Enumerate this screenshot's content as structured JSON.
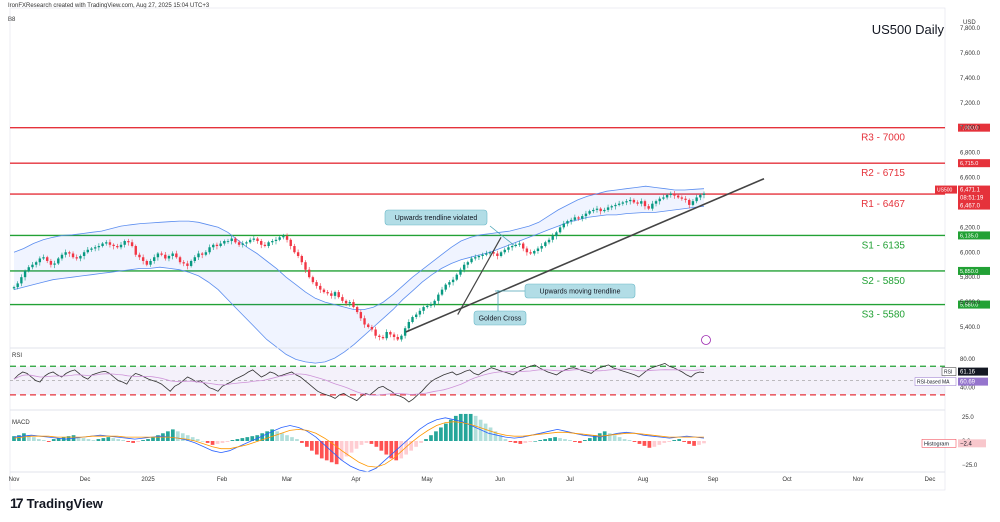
{
  "header": {
    "credit": "IronFXResearch created with TradingView.com, Aug 27, 2025 15:04 UTC+3",
    "symbol_tag": "B8",
    "currency": "USD",
    "brand": "TradingView"
  },
  "chart_data": {
    "type": "candlestick",
    "title": "US500 Daily",
    "currency": "USD",
    "x_tick_labels": [
      "Nov",
      "Dec",
      "2025",
      "Feb",
      "Mar",
      "Apr",
      "May",
      "Jun",
      "Jul",
      "Aug",
      "Sep",
      "Oct",
      "Nov",
      "Dec"
    ],
    "y_tick_labels": [
      5400,
      5600,
      5800,
      6000,
      6200,
      6400,
      6600,
      6800,
      7000,
      7200,
      7400,
      7600,
      7800
    ],
    "ylim": [
      5400,
      7800
    ],
    "close": [
      5720,
      5750,
      5800,
      5850,
      5880,
      5900,
      5920,
      5950,
      5960,
      5930,
      5900,
      5910,
      5950,
      5980,
      6000,
      5990,
      5960,
      5950,
      5970,
      6000,
      6020,
      6030,
      6040,
      6050,
      6070,
      6080,
      6060,
      6050,
      6040,
      6060,
      6090,
      6080,
      6050,
      5980,
      5960,
      5930,
      5900,
      5930,
      5960,
      5990,
      5980,
      5950,
      5970,
      5990,
      5960,
      5920,
      5910,
      5890,
      5930,
      5960,
      5990,
      5980,
      6000,
      6040,
      6060,
      6050,
      6070,
      6090,
      6090,
      6110,
      6080,
      6060,
      6070,
      6080,
      6100,
      6110,
      6090,
      6060,
      6050,
      6080,
      6090,
      6100,
      6120,
      6130,
      6100,
      6050,
      6000,
      5970,
      5920,
      5860,
      5800,
      5760,
      5730,
      5700,
      5680,
      5670,
      5650,
      5680,
      5640,
      5610,
      5590,
      5600,
      5560,
      5520,
      5470,
      5420,
      5400,
      5380,
      5330,
      5320,
      5310,
      5360,
      5340,
      5320,
      5300,
      5330,
      5390,
      5440,
      5480,
      5500,
      5530,
      5560,
      5570,
      5580,
      5610,
      5660,
      5700,
      5740,
      5760,
      5780,
      5820,
      5860,
      5900,
      5920,
      5950,
      5960,
      5970,
      5980,
      5990,
      6000,
      5990,
      5970,
      6000,
      6020,
      6040,
      6050,
      6060,
      6070,
      6030,
      6000,
      5990,
      6010,
      6030,
      6050,
      6080,
      6100,
      6130,
      6160,
      6200,
      6230,
      6250,
      6260,
      6280,
      6270,
      6290,
      6310,
      6330,
      6340,
      6350,
      6330,
      6340,
      6360,
      6370,
      6380,
      6390,
      6400,
      6410,
      6420,
      6400,
      6390,
      6410,
      6370,
      6350,
      6390,
      6410,
      6430,
      6440,
      6460,
      6470,
      6455,
      6440,
      6430,
      6420,
      6380,
      6410,
      6440,
      6460,
      6471
    ],
    "bollinger": {
      "upper": [
        6000,
        6030,
        6070,
        6100,
        6120,
        6135,
        6140,
        6150,
        6160,
        6170,
        6190,
        6210,
        6220,
        6230,
        6235,
        6240,
        6245,
        6250,
        6250,
        6240,
        6220,
        6200,
        6160,
        6100,
        6040,
        5990,
        5930,
        5870,
        5800,
        5740,
        5680,
        5630,
        5600,
        5580,
        5560,
        5540,
        5540,
        5560,
        5600,
        5660,
        5730,
        5800,
        5860,
        5920,
        5980,
        6040,
        6090,
        6120,
        6140,
        6150,
        6160,
        6170,
        6190,
        6210,
        6240,
        6290,
        6340,
        6380,
        6420,
        6450,
        6470,
        6490,
        6500,
        6510,
        6520,
        6530,
        6520,
        6510,
        6500,
        6500,
        6505,
        6510
      ],
      "lower": [
        5700,
        5720,
        5740,
        5760,
        5780,
        5790,
        5800,
        5810,
        5820,
        5830,
        5840,
        5850,
        5860,
        5870,
        5870,
        5880,
        5870,
        5860,
        5840,
        5810,
        5760,
        5700,
        5620,
        5540,
        5460,
        5380,
        5300,
        5240,
        5180,
        5140,
        5120,
        5110,
        5120,
        5150,
        5200,
        5260,
        5330,
        5400,
        5470,
        5540,
        5620,
        5690,
        5760,
        5820,
        5870,
        5910,
        5940,
        5960,
        5980,
        6000,
        6030,
        6060,
        6090,
        6120,
        6150,
        6180,
        6210,
        6240,
        6260,
        6280,
        6290,
        6300,
        6300,
        6310,
        6315,
        6320,
        6320,
        6330,
        6340,
        6350,
        6360,
        6370
      ]
    },
    "levels": [
      {
        "label": "R3 - 7000",
        "value": 7000,
        "tag": "7,000.0",
        "kind": "resistance"
      },
      {
        "label": "R2 - 6715",
        "value": 6715,
        "tag": "6,715.0",
        "kind": "resistance"
      },
      {
        "label": "R1 - 6467",
        "value": 6467,
        "tag": "6,467.0",
        "kind": "resistance"
      },
      {
        "label": "S1 - 6135",
        "value": 6135,
        "tag": "6,135.0",
        "kind": "support"
      },
      {
        "label": "S2 - 5850",
        "value": 5850,
        "tag": "5,850.0",
        "kind": "support"
      },
      {
        "label": "S3 - 5580",
        "value": 5580,
        "tag": "5,580.0",
        "kind": "support"
      }
    ],
    "price_tags": {
      "symbol": "US500",
      "last_price": "6,471.1",
      "countdown": "08:51:19",
      "level": "6,467.0"
    },
    "annotations": [
      {
        "text": "Upwards trendline violated"
      },
      {
        "text": "Upwards moving trendline"
      },
      {
        "text": "Golden Cross"
      }
    ],
    "rsi": {
      "name": "RSI",
      "value": "61.16",
      "based_ma_label": "RSI-based MA",
      "based_ma_value": "60.69",
      "upper_band": 70,
      "lower_band": 30,
      "tick_labels": [
        80,
        60,
        40
      ],
      "values": [
        52,
        58,
        62,
        60,
        55,
        50,
        48,
        56,
        60,
        62,
        58,
        55,
        60,
        63,
        65,
        60,
        55,
        52,
        58,
        60,
        62,
        63,
        60,
        55,
        50,
        48,
        45,
        55,
        60,
        58,
        55,
        52,
        50,
        48,
        45,
        40,
        35,
        42,
        45,
        50,
        55,
        52,
        48,
        50,
        45,
        40,
        38,
        35,
        42,
        45,
        48,
        52,
        55,
        58,
        62,
        65,
        60,
        55,
        58,
        62,
        60,
        56,
        58,
        60,
        62,
        58,
        55,
        50,
        45,
        40,
        35,
        32,
        30,
        28,
        25,
        30,
        32,
        28,
        25,
        22,
        28,
        32,
        30,
        35,
        40,
        42,
        38,
        35,
        30,
        28,
        25,
        20,
        24,
        30,
        35,
        42,
        48,
        52,
        55,
        58,
        60,
        62,
        58,
        60,
        63,
        65,
        60,
        58,
        62,
        65,
        68,
        66,
        64,
        62,
        60,
        58,
        62,
        65,
        68,
        70,
        72,
        68,
        65,
        62,
        60,
        58,
        62,
        65,
        67,
        68,
        66,
        64,
        62,
        60,
        65,
        68,
        70,
        72,
        68,
        66,
        64,
        62,
        60,
        58,
        55,
        60,
        65,
        68,
        70,
        72,
        74,
        70,
        68,
        65,
        62,
        58,
        55,
        60,
        62,
        61.16
      ]
    },
    "macd": {
      "name": "Histogram",
      "value": "-2.4",
      "tick_labels": [
        25,
        0,
        -25
      ],
      "histogram": [
        5,
        6,
        8,
        6,
        4,
        2,
        1,
        -1,
        2,
        3,
        4,
        5,
        6,
        4,
        3,
        2,
        1,
        2,
        3,
        4,
        3,
        2,
        1,
        -1,
        -2,
        -1,
        1,
        2,
        4,
        6,
        8,
        10,
        12,
        10,
        8,
        6,
        4,
        2,
        0,
        -2,
        -4,
        -3,
        -2,
        -1,
        1,
        2,
        3,
        4,
        5,
        6,
        8,
        10,
        12,
        10,
        8,
        6,
        4,
        2,
        -2,
        -6,
        -10,
        -14,
        -18,
        -20,
        -22,
        -24,
        -20,
        -16,
        -12,
        -8,
        -4,
        -2,
        -3,
        -6,
        -10,
        -14,
        -18,
        -20,
        -18,
        -14,
        -10,
        -6,
        -2,
        2,
        6,
        10,
        14,
        18,
        22,
        26,
        28,
        28,
        28,
        26,
        22,
        18,
        14,
        10,
        6,
        2,
        -1,
        -2,
        -3,
        -2,
        -1,
        0,
        1,
        2,
        3,
        4,
        3,
        2,
        1,
        -1,
        -2,
        1,
        3,
        6,
        8,
        10,
        8,
        6,
        4,
        2,
        1,
        -1,
        -3,
        -5,
        -7,
        -6,
        -4,
        -2,
        -1,
        1,
        2,
        -1,
        -3,
        -5,
        -4,
        -2.4
      ],
      "macd_line": [
        4,
        5,
        6,
        5,
        4,
        3,
        2,
        3,
        4,
        5,
        6,
        5,
        4,
        3,
        2,
        3,
        4,
        5,
        4,
        3,
        1,
        -2,
        -6,
        -10,
        -12,
        -10,
        -6,
        -2,
        2,
        6,
        10,
        14,
        16,
        14,
        10,
        4,
        -4,
        -12,
        -20,
        -26,
        -30,
        -32,
        -28,
        -20,
        -12,
        -4,
        4,
        12,
        18,
        22,
        24,
        22,
        20,
        16,
        12,
        8,
        6,
        4,
        3,
        4,
        6,
        8,
        10,
        12,
        10,
        8,
        6,
        5,
        4,
        6,
        8,
        9,
        8,
        6,
        5,
        4,
        3,
        4,
        5,
        4,
        3
      ],
      "signal_line": [
        3,
        4,
        5,
        5,
        5,
        4,
        4,
        4,
        4,
        5,
        5,
        5,
        5,
        4,
        4,
        4,
        4,
        4,
        4,
        3,
        2,
        0,
        -3,
        -6,
        -8,
        -8,
        -6,
        -4,
        -1,
        2,
        5,
        8,
        11,
        12,
        11,
        8,
        3,
        -3,
        -10,
        -16,
        -22,
        -26,
        -27,
        -24,
        -18,
        -10,
        -2,
        5,
        11,
        16,
        19,
        20,
        19,
        17,
        14,
        11,
        8,
        6,
        5,
        5,
        6,
        7,
        8,
        9,
        9,
        8,
        7,
        6,
        5,
        6,
        7,
        8,
        8,
        7,
        6,
        5,
        4,
        4,
        4,
        4,
        4
      ]
    }
  }
}
